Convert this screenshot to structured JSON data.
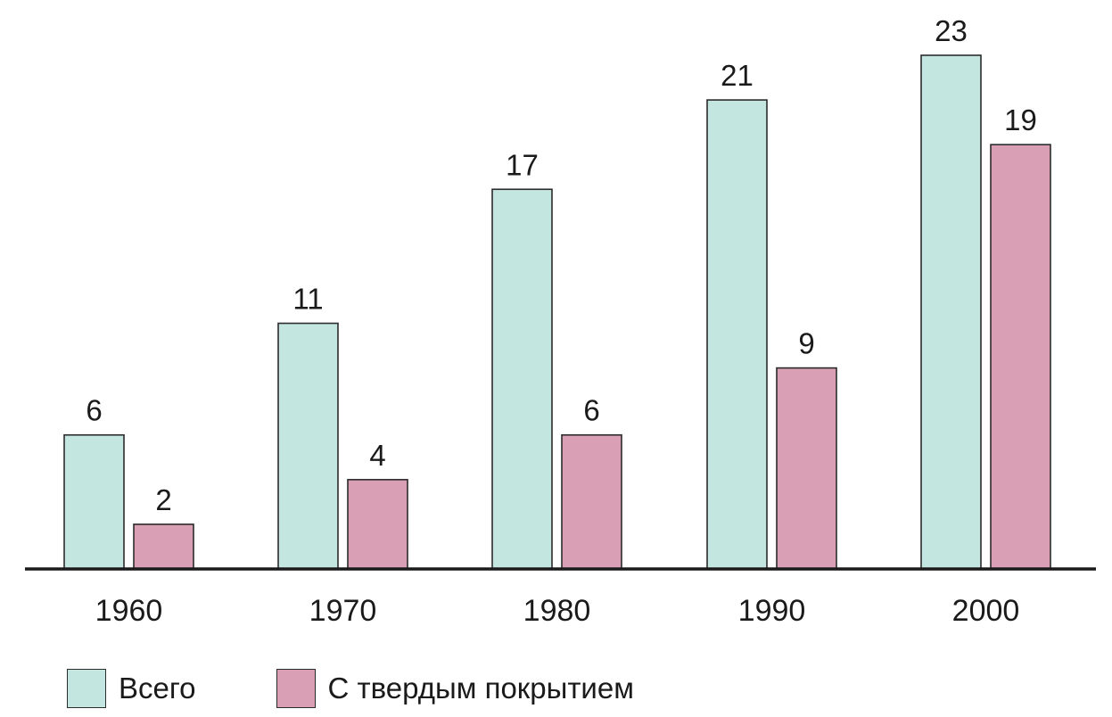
{
  "chart_data": {
    "type": "bar",
    "categories": [
      "1960",
      "1970",
      "1980",
      "1990",
      "2000"
    ],
    "series": [
      {
        "name": "Всего",
        "values": [
          6,
          11,
          17,
          21,
          23
        ],
        "color": "#c3e6e1"
      },
      {
        "name": "С твердым покрытием",
        "values": [
          2,
          4,
          6,
          9,
          19
        ],
        "color": "#d99fb4"
      }
    ],
    "data_labels": true,
    "ylim": [
      0,
      23
    ],
    "grid": false,
    "legend_position": "bottom-left"
  }
}
